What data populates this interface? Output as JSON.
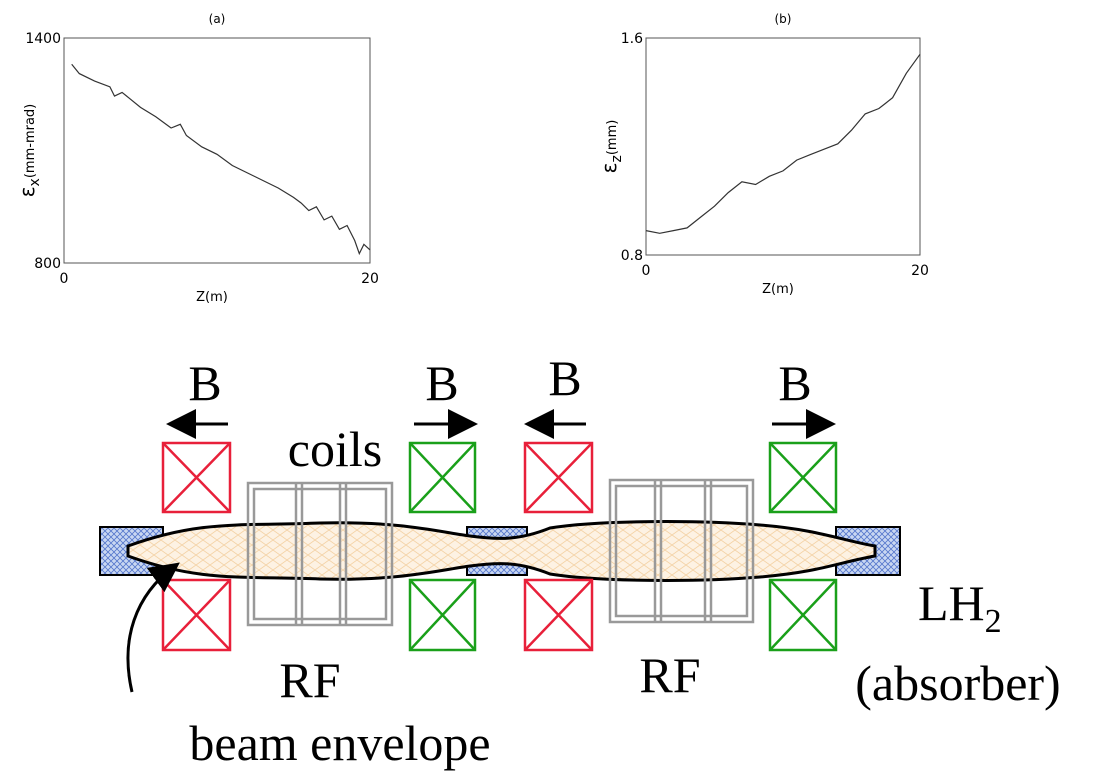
{
  "chart_data": [
    {
      "type": "line",
      "title": "(a)",
      "xlabel": "Z(m)",
      "ylabel_symbol": "ε",
      "ylabel_subscript": "x",
      "ylabel_unit": "(mm-mrad)",
      "xlim": [
        0,
        20
      ],
      "xticks": [
        0,
        20
      ],
      "ylim": [
        800,
        1400
      ],
      "yticks": [
        800,
        1400
      ],
      "color": "#333333",
      "x": [
        0.5,
        1,
        2,
        3,
        3.3,
        3.8,
        5,
        6,
        7,
        7.6,
        8,
        9,
        10,
        11,
        12,
        13,
        14,
        15,
        15.5,
        16,
        16.5,
        17,
        17.5,
        18,
        18.5,
        19,
        19.3,
        19.6,
        20
      ],
      "values": [
        1330,
        1305,
        1285,
        1270,
        1245,
        1255,
        1215,
        1190,
        1160,
        1170,
        1140,
        1110,
        1090,
        1060,
        1040,
        1020,
        1000,
        975,
        960,
        940,
        950,
        915,
        925,
        890,
        900,
        860,
        825,
        850,
        835
      ]
    },
    {
      "type": "line",
      "title": "(b)",
      "xlabel": "Z(m)",
      "ylabel_symbol": "ε",
      "ylabel_subscript": "z",
      "ylabel_unit": "(mm)",
      "xlim": [
        0,
        20
      ],
      "xticks": [
        0,
        20
      ],
      "ylim": [
        0.8,
        1.6
      ],
      "yticks": [
        0.8,
        1.6
      ],
      "color": "#333333",
      "x": [
        0,
        1,
        2,
        3,
        4,
        5,
        6,
        7,
        8,
        9,
        10,
        11,
        12,
        13,
        14,
        15,
        16,
        17,
        17.5,
        18,
        19,
        20
      ],
      "values": [
        0.89,
        0.88,
        0.89,
        0.9,
        0.94,
        0.98,
        1.03,
        1.07,
        1.06,
        1.09,
        1.11,
        1.15,
        1.17,
        1.19,
        1.21,
        1.26,
        1.32,
        1.34,
        1.36,
        1.38,
        1.47,
        1.54
      ]
    }
  ],
  "diagram": {
    "field_labels": [
      "B",
      "B",
      "B",
      "B"
    ],
    "coils": "coils",
    "rf_labels": [
      "RF",
      "RF"
    ],
    "lh": "LH",
    "lh_subscript": "2",
    "absorber": "(absorber)",
    "beam_envelope": "beam envelope"
  }
}
